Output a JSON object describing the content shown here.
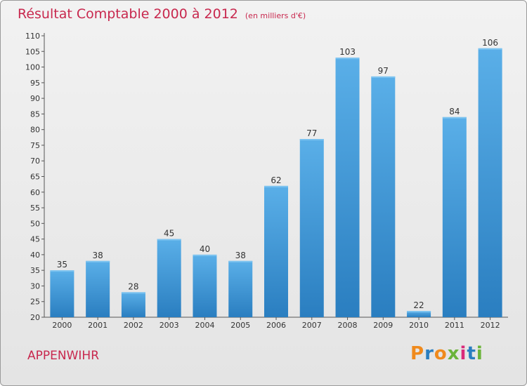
{
  "title": "Résultat Comptable 2000 à 2012",
  "subtitle": "(en milliers d'€)",
  "town": "APPENWIHR",
  "brand": "Proxiti",
  "colors": {
    "title": "#c8284e",
    "bar_top": "#5aafe8",
    "bar_bottom": "#2a7ec0",
    "axis": "#555555"
  },
  "chart_data": {
    "type": "bar",
    "title": "Résultat Comptable 2000 à 2012",
    "ylabel": "en milliers d'€",
    "xlabel": "",
    "categories": [
      "2000",
      "2001",
      "2002",
      "2003",
      "2004",
      "2005",
      "2006",
      "2007",
      "2008",
      "2009",
      "2010",
      "2011",
      "2012"
    ],
    "values": [
      35,
      38,
      28,
      45,
      40,
      38,
      62,
      77,
      103,
      97,
      22,
      84,
      106
    ],
    "ylim": [
      20,
      110
    ],
    "yticks": [
      20,
      25,
      30,
      35,
      40,
      45,
      50,
      55,
      60,
      65,
      70,
      75,
      80,
      85,
      90,
      95,
      100,
      105,
      110
    ],
    "grid": false
  }
}
